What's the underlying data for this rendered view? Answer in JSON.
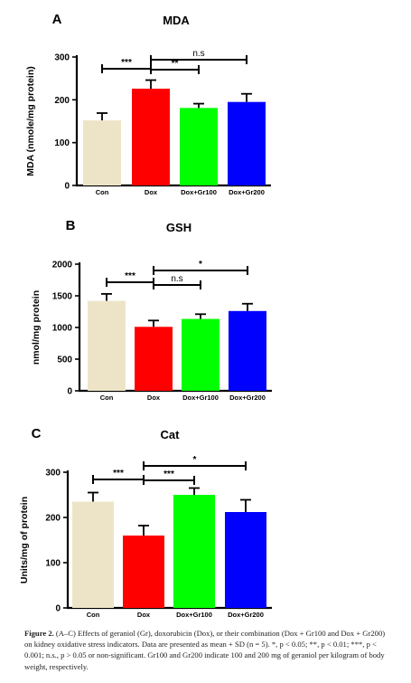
{
  "chart_data": [
    {
      "type": "bar",
      "panel": "A",
      "title": "MDA",
      "ylabel": "MDA (nmole/mg protein)",
      "categories": [
        "Con",
        "Dox",
        "Dox+Gr100",
        "Dox+Gr200"
      ],
      "values": [
        152,
        226,
        181,
        195
      ],
      "errors": [
        17,
        20,
        10,
        19
      ],
      "colors": [
        "#ede4c8",
        "#ff0000",
        "#00ff00",
        "#0000ff"
      ],
      "ylim": [
        0,
        300
      ],
      "yticks": [
        0,
        100,
        200,
        300
      ],
      "yticklabels": [
        "0",
        "100",
        "200",
        "300"
      ],
      "significance": [
        {
          "from": 0,
          "to": 1,
          "label": "***"
        },
        {
          "from": 1,
          "to": 2,
          "label": "**"
        },
        {
          "from": 1,
          "to": 3,
          "label": "n.s"
        }
      ]
    },
    {
      "type": "bar",
      "panel": "B",
      "title": "GSH",
      "ylabel": "nmol/mg protein",
      "categories": [
        "Con",
        "Dox",
        "Dox+Gr100",
        "Dox+Gr200"
      ],
      "values": [
        1420,
        1010,
        1135,
        1260
      ],
      "errors": [
        110,
        100,
        75,
        115
      ],
      "colors": [
        "#ede4c8",
        "#ff0000",
        "#00ff00",
        "#0000ff"
      ],
      "ylim": [
        0,
        2000
      ],
      "yticks": [
        0,
        500,
        1000,
        1500,
        2000
      ],
      "yticklabels": [
        "0",
        "500",
        "1000",
        "1500",
        "2000"
      ],
      "significance": [
        {
          "from": 0,
          "to": 1,
          "label": "***"
        },
        {
          "from": 1,
          "to": 2,
          "label": "n.s"
        },
        {
          "from": 1,
          "to": 3,
          "label": "*"
        }
      ]
    },
    {
      "type": "bar",
      "panel": "C",
      "title": "Cat",
      "ylabel": "Units/mg of protein",
      "categories": [
        "Con",
        "Dox",
        "Dox+Gr100",
        "Dox+Gr200"
      ],
      "values": [
        235,
        160,
        250,
        212
      ],
      "errors": [
        20,
        22,
        15,
        27
      ],
      "colors": [
        "#ede4c8",
        "#ff0000",
        "#00ff00",
        "#0000ff"
      ],
      "ylim": [
        0,
        300
      ],
      "yticks": [
        0,
        100,
        200,
        300
      ],
      "yticklabels": [
        "0",
        "100",
        "200",
        "300"
      ],
      "significance": [
        {
          "from": 0,
          "to": 1,
          "label": "***"
        },
        {
          "from": 1,
          "to": 2,
          "label": "***"
        },
        {
          "from": 1,
          "to": 3,
          "label": "*"
        }
      ]
    }
  ],
  "caption": {
    "label": "Figure 2.",
    "text": " (A–C) Effects of geraniol (Gr), doxorubicin (Dox), or their combination (Dox + Gr100 and Dox + Gr200) on kidney oxidative stress indicators. Data are presented as mean + SD (n = 5). *, p < 0.05; **, p < 0.01; ***, p < 0.001; n.s., p > 0.05 or non-significant. Gr100 and Gr200 indicate 100 and 200 mg of geraniol per kilogram of body weight, respectively."
  }
}
